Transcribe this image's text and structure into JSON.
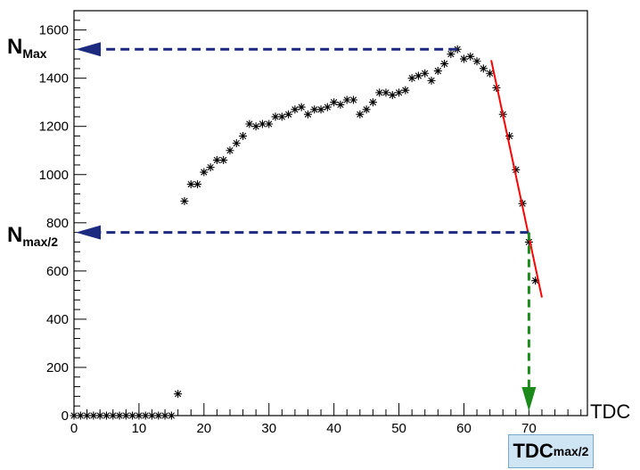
{
  "chart_data": {
    "type": "scatter",
    "title": "",
    "xlabel": "TDC",
    "ylabel": "",
    "xlim": [
      0,
      79
    ],
    "ylim": [
      0,
      1680
    ],
    "x_ticks": [
      0,
      10,
      20,
      30,
      40,
      50,
      60,
      70
    ],
    "y_ticks": [
      0,
      200,
      400,
      600,
      800,
      1000,
      1200,
      1400,
      1600
    ],
    "grid": false,
    "marker": "asterisk",
    "points": [
      [
        0,
        0
      ],
      [
        1,
        0
      ],
      [
        2,
        0
      ],
      [
        3,
        0
      ],
      [
        4,
        0
      ],
      [
        5,
        0
      ],
      [
        6,
        0
      ],
      [
        7,
        0
      ],
      [
        8,
        0
      ],
      [
        9,
        0
      ],
      [
        10,
        0
      ],
      [
        11,
        0
      ],
      [
        12,
        0
      ],
      [
        13,
        0
      ],
      [
        14,
        0
      ],
      [
        15,
        0
      ],
      [
        16,
        90
      ],
      [
        17,
        890
      ],
      [
        18,
        960
      ],
      [
        19,
        960
      ],
      [
        20,
        1010
      ],
      [
        21,
        1030
      ],
      [
        22,
        1060
      ],
      [
        23,
        1060
      ],
      [
        24,
        1100
      ],
      [
        25,
        1130
      ],
      [
        26,
        1160
      ],
      [
        27,
        1210
      ],
      [
        28,
        1200
      ],
      [
        29,
        1210
      ],
      [
        30,
        1210
      ],
      [
        31,
        1240
      ],
      [
        32,
        1240
      ],
      [
        33,
        1250
      ],
      [
        34,
        1270
      ],
      [
        35,
        1280
      ],
      [
        36,
        1250
      ],
      [
        37,
        1270
      ],
      [
        38,
        1270
      ],
      [
        39,
        1280
      ],
      [
        40,
        1300
      ],
      [
        41,
        1290
      ],
      [
        42,
        1310
      ],
      [
        43,
        1310
      ],
      [
        44,
        1250
      ],
      [
        45,
        1270
      ],
      [
        46,
        1300
      ],
      [
        47,
        1340
      ],
      [
        48,
        1340
      ],
      [
        49,
        1330
      ],
      [
        50,
        1340
      ],
      [
        51,
        1350
      ],
      [
        52,
        1400
      ],
      [
        53,
        1410
      ],
      [
        54,
        1420
      ],
      [
        55,
        1390
      ],
      [
        56,
        1430
      ],
      [
        57,
        1460
      ],
      [
        58,
        1500
      ],
      [
        59,
        1520
      ],
      [
        60,
        1480
      ],
      [
        61,
        1490
      ],
      [
        62,
        1470
      ],
      [
        63,
        1440
      ],
      [
        64,
        1420
      ],
      [
        65,
        1360
      ],
      [
        66,
        1250
      ],
      [
        67,
        1160
      ],
      [
        68,
        1020
      ],
      [
        69,
        880
      ],
      [
        70,
        720
      ],
      [
        71,
        560
      ]
    ],
    "fit_line": {
      "x": [
        64.2,
        72
      ],
      "y": [
        1475,
        490
      ],
      "color": "#ff0000"
    },
    "annotations": {
      "n_max": {
        "value": 1520,
        "label_main": "N",
        "label_sub": "Max",
        "x_from": 59,
        "color": "#1c2a80"
      },
      "n_half": {
        "value": 760,
        "label_main": "N",
        "label_sub": "max/2",
        "x_from": 70,
        "color": "#1c2a80"
      },
      "tdc_half": {
        "value": 70,
        "y_from": 760,
        "color": "#1a8a1a",
        "label_main": "TDC",
        "label_sub": "max/2",
        "box_color": "#cfe5f3"
      }
    }
  }
}
